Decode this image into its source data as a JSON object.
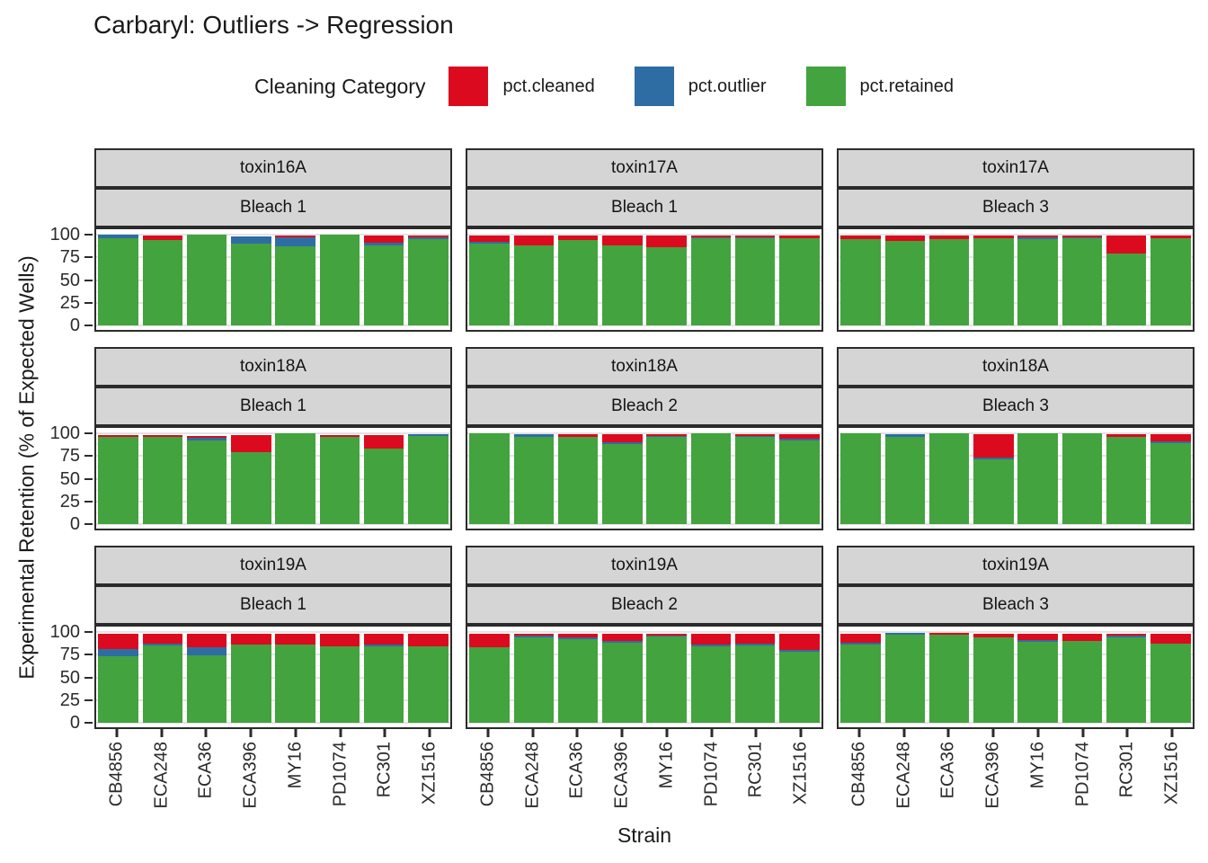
{
  "chart_data": {
    "type": "bar",
    "variant": "stacked-percent-faceted",
    "title": "Carbaryl: Outliers -> Regression",
    "xlabel": "Strain",
    "ylabel": "Experimental Retention (% of Expected Wells)",
    "ylim": [
      0,
      100
    ],
    "y_major_ticks": [
      0,
      25,
      50,
      75,
      100
    ],
    "y_minor_ticks": [
      12.5,
      37.5,
      62.5,
      87.5
    ],
    "grid": "on",
    "legend": {
      "title": "Cleaning Category",
      "position": "top",
      "items": [
        {
          "key": "cleaned",
          "label": "pct.cleaned",
          "color": "#DB0A1E"
        },
        {
          "key": "outlier",
          "label": "pct.outlier",
          "color": "#2E6DA4"
        },
        {
          "key": "retained",
          "label": "pct.retained",
          "color": "#43A33E"
        }
      ]
    },
    "categories": [
      "CB4856",
      "ECA248",
      "ECA36",
      "ECA396",
      "MY16",
      "PD1074",
      "RC301",
      "XZ1516"
    ],
    "stack_order_top_to_bottom": [
      "cleaned",
      "outlier",
      "retained"
    ],
    "facet_layout": {
      "rows": 3,
      "cols": 3,
      "strip_labels": [
        "toxin",
        "bleach"
      ],
      "strip_color": "#D5D5D5"
    },
    "panels": [
      {
        "toxin": "toxin16A",
        "bleach": "Bleach 1",
        "values": {
          "cleaned": [
            0,
            5,
            0,
            0,
            1.5,
            0,
            8,
            1.5
          ],
          "outlier": [
            3.5,
            0,
            0,
            8,
            10.5,
            0,
            3,
            2.5
          ],
          "retained": [
            96.5,
            94,
            100,
            90,
            87,
            100,
            88,
            95
          ]
        }
      },
      {
        "toxin": "toxin17A",
        "bleach": "Bleach 1",
        "values": {
          "cleaned": [
            7,
            11,
            5,
            11,
            13,
            2,
            2,
            3
          ],
          "outlier": [
            2,
            0,
            0,
            0,
            0,
            1.5,
            1.5,
            0
          ],
          "retained": [
            90,
            88,
            94,
            88,
            86,
            96,
            96,
            96
          ]
        }
      },
      {
        "toxin": "toxin17A",
        "bleach": "Bleach 3",
        "values": {
          "cleaned": [
            4,
            6,
            4,
            2.5,
            2,
            1.5,
            20,
            3
          ],
          "outlier": [
            0,
            0,
            0,
            0,
            1.5,
            1.5,
            0,
            0
          ],
          "retained": [
            95,
            93,
            95,
            96.5,
            95.5,
            96,
            79,
            96
          ]
        }
      },
      {
        "toxin": "toxin18A",
        "bleach": "Bleach 1",
        "values": {
          "cleaned": [
            2,
            2,
            2,
            19,
            0,
            2,
            15,
            0
          ],
          "outlier": [
            0,
            0,
            3,
            0,
            0,
            0,
            0,
            2
          ],
          "retained": [
            96,
            96,
            92,
            79,
            100,
            96,
            83,
            97
          ]
        }
      },
      {
        "toxin": "toxin18A",
        "bleach": "Bleach 2",
        "values": {
          "cleaned": [
            0,
            0,
            3,
            9,
            1.5,
            0,
            1.5,
            5
          ],
          "outlier": [
            0,
            3,
            0,
            1.5,
            1.5,
            0,
            1.5,
            1.5
          ],
          "retained": [
            100,
            96,
            96,
            88.5,
            96,
            100,
            96,
            92.5
          ]
        }
      },
      {
        "toxin": "toxin18A",
        "bleach": "Bleach 3",
        "values": {
          "cleaned": [
            0,
            0,
            0,
            26,
            0,
            0,
            2.5,
            8
          ],
          "outlier": [
            0,
            2.5,
            0,
            2,
            0,
            0,
            0,
            1.5
          ],
          "retained": [
            100,
            96.5,
            100,
            71,
            100,
            100,
            96.5,
            89.5
          ]
        }
      },
      {
        "toxin": "toxin19A",
        "bleach": "Bleach 1",
        "values": {
          "cleaned": [
            17,
            11,
            15,
            12,
            12,
            14,
            12,
            14
          ],
          "outlier": [
            8,
            1.5,
            9,
            0,
            0,
            0,
            2,
            0
          ],
          "retained": [
            73,
            85.5,
            74,
            86,
            86,
            84,
            84,
            84
          ]
        }
      },
      {
        "toxin": "toxin19A",
        "bleach": "Bleach 2",
        "values": {
          "cleaned": [
            15,
            2,
            4,
            8,
            1.5,
            12,
            11,
            18
          ],
          "outlier": [
            0,
            1.5,
            2,
            1.5,
            1.5,
            1.5,
            1.5,
            2
          ],
          "retained": [
            83,
            94.5,
            92,
            88.5,
            95,
            84.5,
            85.5,
            78
          ]
        }
      },
      {
        "toxin": "toxin19A",
        "bleach": "Bleach 3",
        "values": {
          "cleaned": [
            10,
            0,
            1.5,
            4,
            7,
            8,
            2,
            11
          ],
          "outlier": [
            1.5,
            1.5,
            0,
            0,
            1.5,
            0,
            1.5,
            0
          ],
          "retained": [
            86.5,
            97.5,
            97.5,
            94,
            89.5,
            90,
            94.5,
            87
          ]
        }
      }
    ],
    "grid_colors": {
      "major": "#e4e4e4",
      "minor": "#f2f2f2"
    }
  }
}
